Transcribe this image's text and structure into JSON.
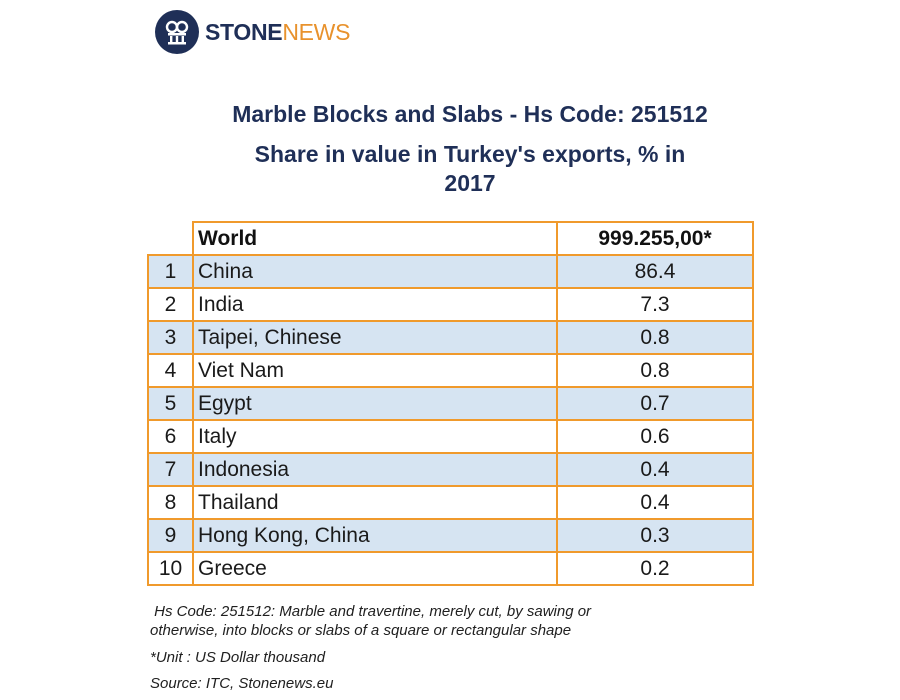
{
  "logo": {
    "stone": "STONE",
    "news": "NEWS",
    "icon": "stonenews-column-icon",
    "colors": {
      "navy": "#1f2f57",
      "orange": "#e8922d"
    }
  },
  "title": {
    "line1": "Marble Blocks and Slabs - Hs Code: 251512",
    "line2": "Share in value in Turkey's exports, % in",
    "line3": "2017"
  },
  "table": {
    "header": {
      "country": "World",
      "value": "999.255,00*"
    },
    "rows": [
      {
        "rank": "1",
        "country": "China",
        "value": "86.4"
      },
      {
        "rank": "2",
        "country": "India",
        "value": "7.3"
      },
      {
        "rank": "3",
        "country": "Taipei, Chinese",
        "value": "0.8"
      },
      {
        "rank": "4",
        "country": "Viet Nam",
        "value": "0.8"
      },
      {
        "rank": "5",
        "country": "Egypt",
        "value": "0.7"
      },
      {
        "rank": "6",
        "country": "Italy",
        "value": "0.6"
      },
      {
        "rank": "7",
        "country": "Indonesia",
        "value": "0.4"
      },
      {
        "rank": "8",
        "country": "Thailand",
        "value": "0.4"
      },
      {
        "rank": "9",
        "country": "Hong Kong, China",
        "value": "0.3"
      },
      {
        "rank": "10",
        "country": "Greece",
        "value": "0.2"
      }
    ],
    "colors": {
      "border": "#f09a2c",
      "shaded_row": "#d6e4f2"
    }
  },
  "notes": {
    "hs_line1": "Hs Code: 251512: Marble and travertine, merely cut, by sawing or",
    "hs_line2": "otherwise, into blocks or slabs of a square or rectangular shape",
    "unit": "*Unit : US Dollar thousand",
    "source": "Source: ITC, Stonenews.eu"
  }
}
